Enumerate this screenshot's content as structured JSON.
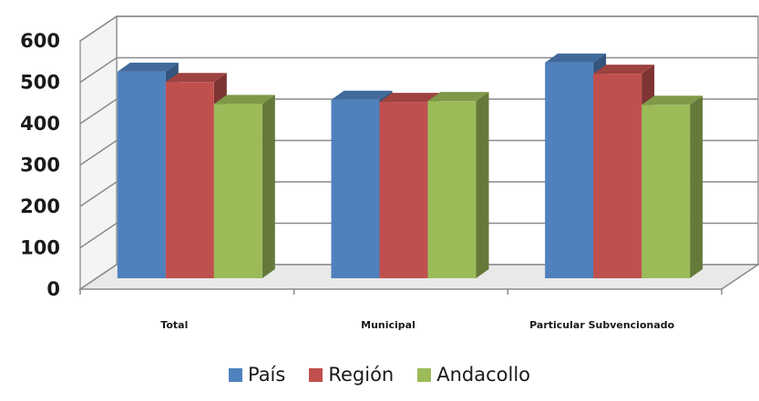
{
  "chart_data": {
    "type": "bar",
    "categories": [
      "Total",
      "Municipal",
      "Particular Subvencionado"
    ],
    "series": [
      {
        "name": "País",
        "values": [
          508,
          440,
          530
        ],
        "color": "#4f81bd"
      },
      {
        "name": "Región",
        "values": [
          483,
          435,
          503
        ],
        "color": "#c0504d"
      },
      {
        "name": "Andacollo",
        "values": [
          430,
          437,
          428
        ],
        "color": "#9bbb59"
      }
    ],
    "yticks": [
      "0",
      "100",
      "200",
      "300",
      "400",
      "500",
      "600"
    ],
    "ylim": [
      0,
      600
    ],
    "grid": true,
    "style": "3d-clustered-column",
    "legend_position": "bottom"
  }
}
